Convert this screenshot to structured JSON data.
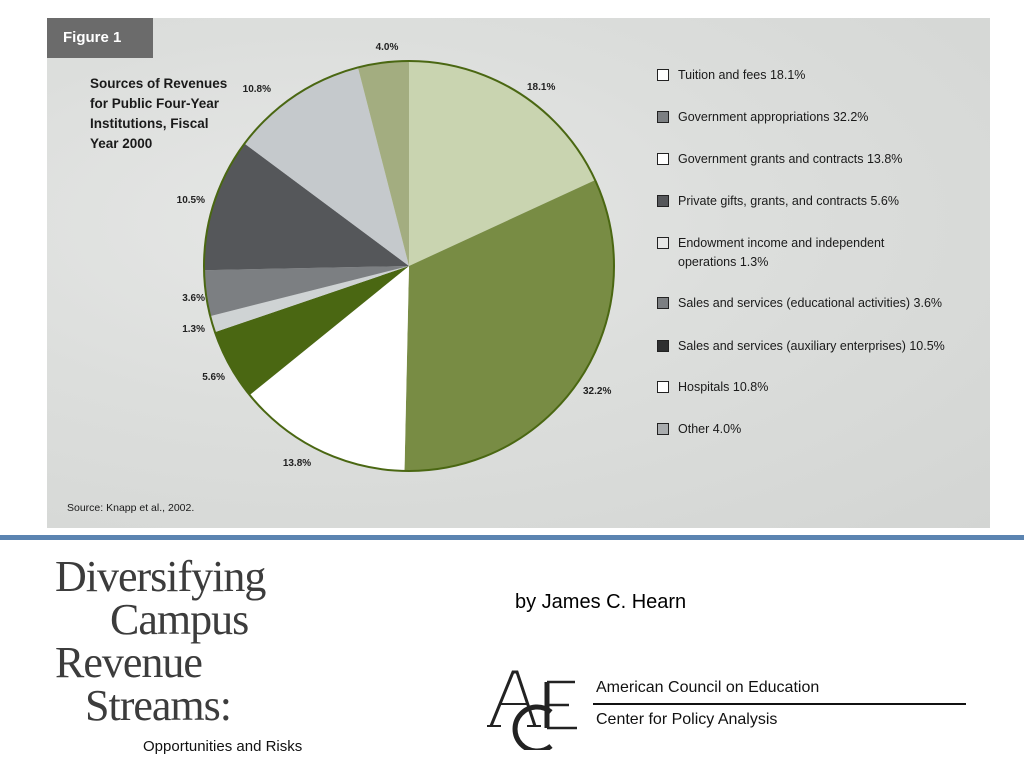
{
  "figure_tab": "Figure 1",
  "chart_data": {
    "type": "pie",
    "title": "Sources of Revenues for Public Four-Year Institutions, Fiscal Year 2000",
    "slices": [
      {
        "label": "Tuition and fees",
        "value": 18.1,
        "display": "18.1%",
        "color": "#c9d4b0",
        "legend": "Tuition and fees 18.1%"
      },
      {
        "label": "Government appropriations",
        "value": 32.2,
        "display": "32.2%",
        "color": "#788c44",
        "legend": "Government appropriations 32.2%"
      },
      {
        "label": "Government grants and contracts",
        "value": 13.8,
        "display": "13.8%",
        "color": "#ffffff",
        "legend": "Government grants and contracts 13.8%"
      },
      {
        "label": "Private gifts, grants, and contracts",
        "value": 5.6,
        "display": "5.6%",
        "color": "#4a6712",
        "legend": "Private gifts, grants, and contracts 5.6%"
      },
      {
        "label": "Endowment income and independent operations",
        "value": 1.3,
        "display": "1.3%",
        "color": "#cfd3d4",
        "legend": "Endowment income and independent operations 1.3%"
      },
      {
        "label": "Sales and services (educational activities)",
        "value": 3.6,
        "display": "3.6%",
        "color": "#7c7f82",
        "legend": "Sales and services (educational activities) 3.6%"
      },
      {
        "label": "Sales and services (auxiliary enterprises)",
        "value": 10.5,
        "display": "10.5%",
        "color": "#55575a",
        "legend": "Sales and services (auxiliary enterprises) 10.5%"
      },
      {
        "label": "Hospitals",
        "value": 10.8,
        "display": "10.8%",
        "color": "#c5c9cc",
        "legend": "Hospitals 10.8%"
      },
      {
        "label": "Other",
        "value": 4.0,
        "display": "4.0%",
        "color": "#a3ad80",
        "legend": "Other 4.0%"
      }
    ],
    "start": "12 o'clock",
    "direction": "clockwise",
    "legend_position": "right",
    "outline_color": "#4a6712"
  },
  "source": "Source:  Knapp et al., 2002.",
  "book": {
    "title_lines": [
      "Diversifying",
      "Campus",
      "Revenue",
      "Streams:"
    ],
    "subtitle": "Opportunities and Risks"
  },
  "author": "by James C. Hearn",
  "ace": {
    "org": "American Council on Education",
    "dept": "Center for Policy Analysis"
  }
}
